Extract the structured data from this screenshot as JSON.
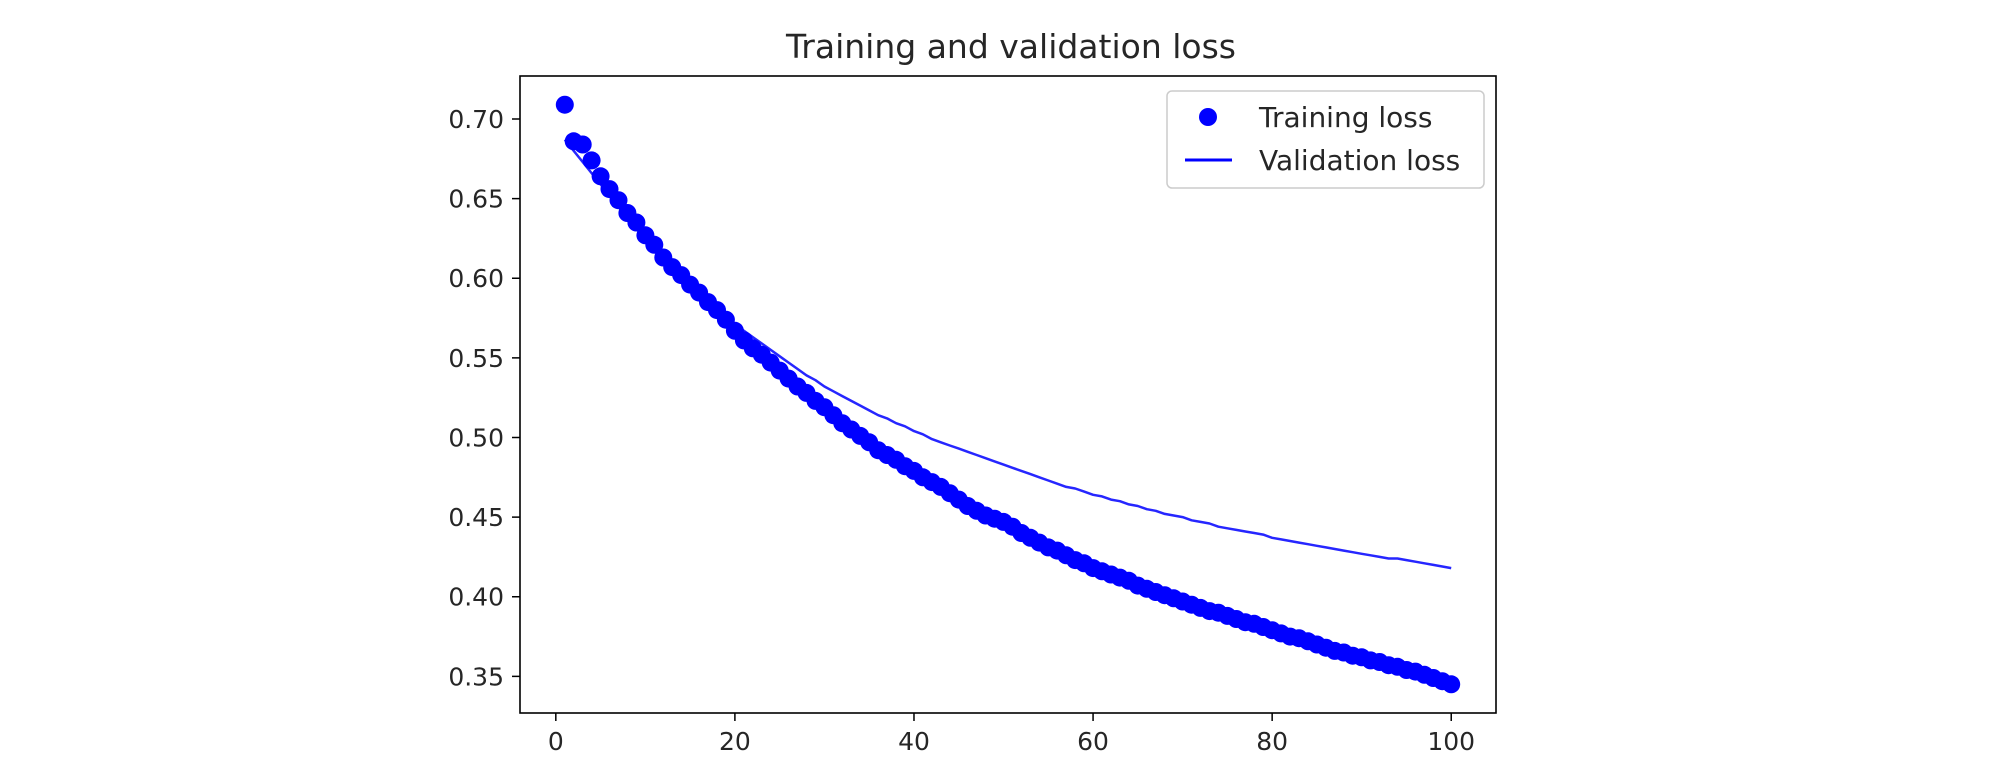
{
  "chart_data": {
    "type": "line",
    "title": "Training and validation loss",
    "xlabel": "",
    "ylabel": "",
    "xlim": [
      -4,
      105
    ],
    "ylim": [
      0.327,
      0.727
    ],
    "xticks": [
      0,
      20,
      40,
      60,
      80,
      100
    ],
    "yticks": [
      0.35,
      0.4,
      0.45,
      0.5,
      0.55,
      0.6,
      0.65,
      0.7
    ],
    "ytick_labels": [
      "0.35",
      "0.40",
      "0.45",
      "0.50",
      "0.55",
      "0.60",
      "0.65",
      "0.70"
    ],
    "xtick_labels": [
      "0",
      "20",
      "40",
      "60",
      "80",
      "100"
    ],
    "grid": false,
    "legend_position": "top-right",
    "series": [
      {
        "name": "Training loss",
        "style": "markers",
        "color": "#0000ff",
        "x": [
          1,
          2,
          3,
          4,
          5,
          6,
          7,
          8,
          9,
          10,
          11,
          12,
          13,
          14,
          15,
          16,
          17,
          18,
          19,
          20,
          21,
          22,
          23,
          24,
          25,
          26,
          27,
          28,
          29,
          30,
          31,
          32,
          33,
          34,
          35,
          36,
          37,
          38,
          39,
          40,
          41,
          42,
          43,
          44,
          45,
          46,
          47,
          48,
          49,
          50,
          51,
          52,
          53,
          54,
          55,
          56,
          57,
          58,
          59,
          60,
          61,
          62,
          63,
          64,
          65,
          66,
          67,
          68,
          69,
          70,
          71,
          72,
          73,
          74,
          75,
          76,
          77,
          78,
          79,
          80,
          81,
          82,
          83,
          84,
          85,
          86,
          87,
          88,
          89,
          90,
          91,
          92,
          93,
          94,
          95,
          96,
          97,
          98,
          99,
          100
        ],
        "y": [
          0.709,
          0.686,
          0.684,
          0.674,
          0.664,
          0.656,
          0.649,
          0.641,
          0.635,
          0.627,
          0.621,
          0.613,
          0.607,
          0.602,
          0.596,
          0.591,
          0.585,
          0.58,
          0.574,
          0.567,
          0.561,
          0.556,
          0.552,
          0.547,
          0.542,
          0.537,
          0.532,
          0.528,
          0.523,
          0.519,
          0.514,
          0.509,
          0.505,
          0.501,
          0.497,
          0.492,
          0.489,
          0.486,
          0.482,
          0.479,
          0.475,
          0.472,
          0.469,
          0.465,
          0.461,
          0.457,
          0.454,
          0.451,
          0.449,
          0.447,
          0.444,
          0.44,
          0.437,
          0.434,
          0.431,
          0.429,
          0.426,
          0.423,
          0.421,
          0.418,
          0.416,
          0.414,
          0.412,
          0.41,
          0.407,
          0.405,
          0.403,
          0.401,
          0.399,
          0.397,
          0.395,
          0.393,
          0.391,
          0.39,
          0.388,
          0.386,
          0.384,
          0.383,
          0.381,
          0.379,
          0.377,
          0.375,
          0.374,
          0.372,
          0.37,
          0.368,
          0.366,
          0.365,
          0.363,
          0.362,
          0.36,
          0.359,
          0.357,
          0.356,
          0.354,
          0.353,
          0.351,
          0.349,
          0.347,
          0.345
        ]
      },
      {
        "name": "Validation loss",
        "style": "line",
        "color": "#0000ff",
        "x": [
          1,
          2,
          3,
          4,
          5,
          6,
          7,
          8,
          9,
          10,
          11,
          12,
          13,
          14,
          15,
          16,
          17,
          18,
          19,
          20,
          21,
          22,
          23,
          24,
          25,
          26,
          27,
          28,
          29,
          30,
          31,
          32,
          33,
          34,
          35,
          36,
          37,
          38,
          39,
          40,
          41,
          42,
          43,
          44,
          45,
          46,
          47,
          48,
          49,
          50,
          51,
          52,
          53,
          54,
          55,
          56,
          57,
          58,
          59,
          60,
          61,
          62,
          63,
          64,
          65,
          66,
          67,
          68,
          69,
          70,
          71,
          72,
          73,
          74,
          75,
          76,
          77,
          78,
          79,
          80,
          81,
          82,
          83,
          84,
          85,
          86,
          87,
          88,
          89,
          90,
          91,
          92,
          93,
          94,
          95,
          96,
          97,
          98,
          99,
          100
        ],
        "y": [
          0.687,
          0.68,
          0.673,
          0.666,
          0.659,
          0.652,
          0.645,
          0.638,
          0.631,
          0.625,
          0.619,
          0.613,
          0.606,
          0.6,
          0.594,
          0.589,
          0.584,
          0.579,
          0.575,
          0.571,
          0.567,
          0.563,
          0.559,
          0.555,
          0.551,
          0.547,
          0.543,
          0.539,
          0.536,
          0.532,
          0.529,
          0.526,
          0.523,
          0.52,
          0.517,
          0.514,
          0.512,
          0.509,
          0.507,
          0.504,
          0.502,
          0.499,
          0.497,
          0.495,
          0.493,
          0.491,
          0.489,
          0.487,
          0.485,
          0.483,
          0.481,
          0.479,
          0.477,
          0.475,
          0.473,
          0.471,
          0.469,
          0.468,
          0.466,
          0.464,
          0.463,
          0.461,
          0.46,
          0.458,
          0.457,
          0.455,
          0.454,
          0.452,
          0.451,
          0.45,
          0.448,
          0.447,
          0.446,
          0.444,
          0.443,
          0.442,
          0.441,
          0.44,
          0.439,
          0.437,
          0.436,
          0.435,
          0.434,
          0.433,
          0.432,
          0.431,
          0.43,
          0.429,
          0.428,
          0.427,
          0.426,
          0.425,
          0.424,
          0.424,
          0.423,
          0.422,
          0.421,
          0.42,
          0.419,
          0.418
        ]
      }
    ]
  }
}
